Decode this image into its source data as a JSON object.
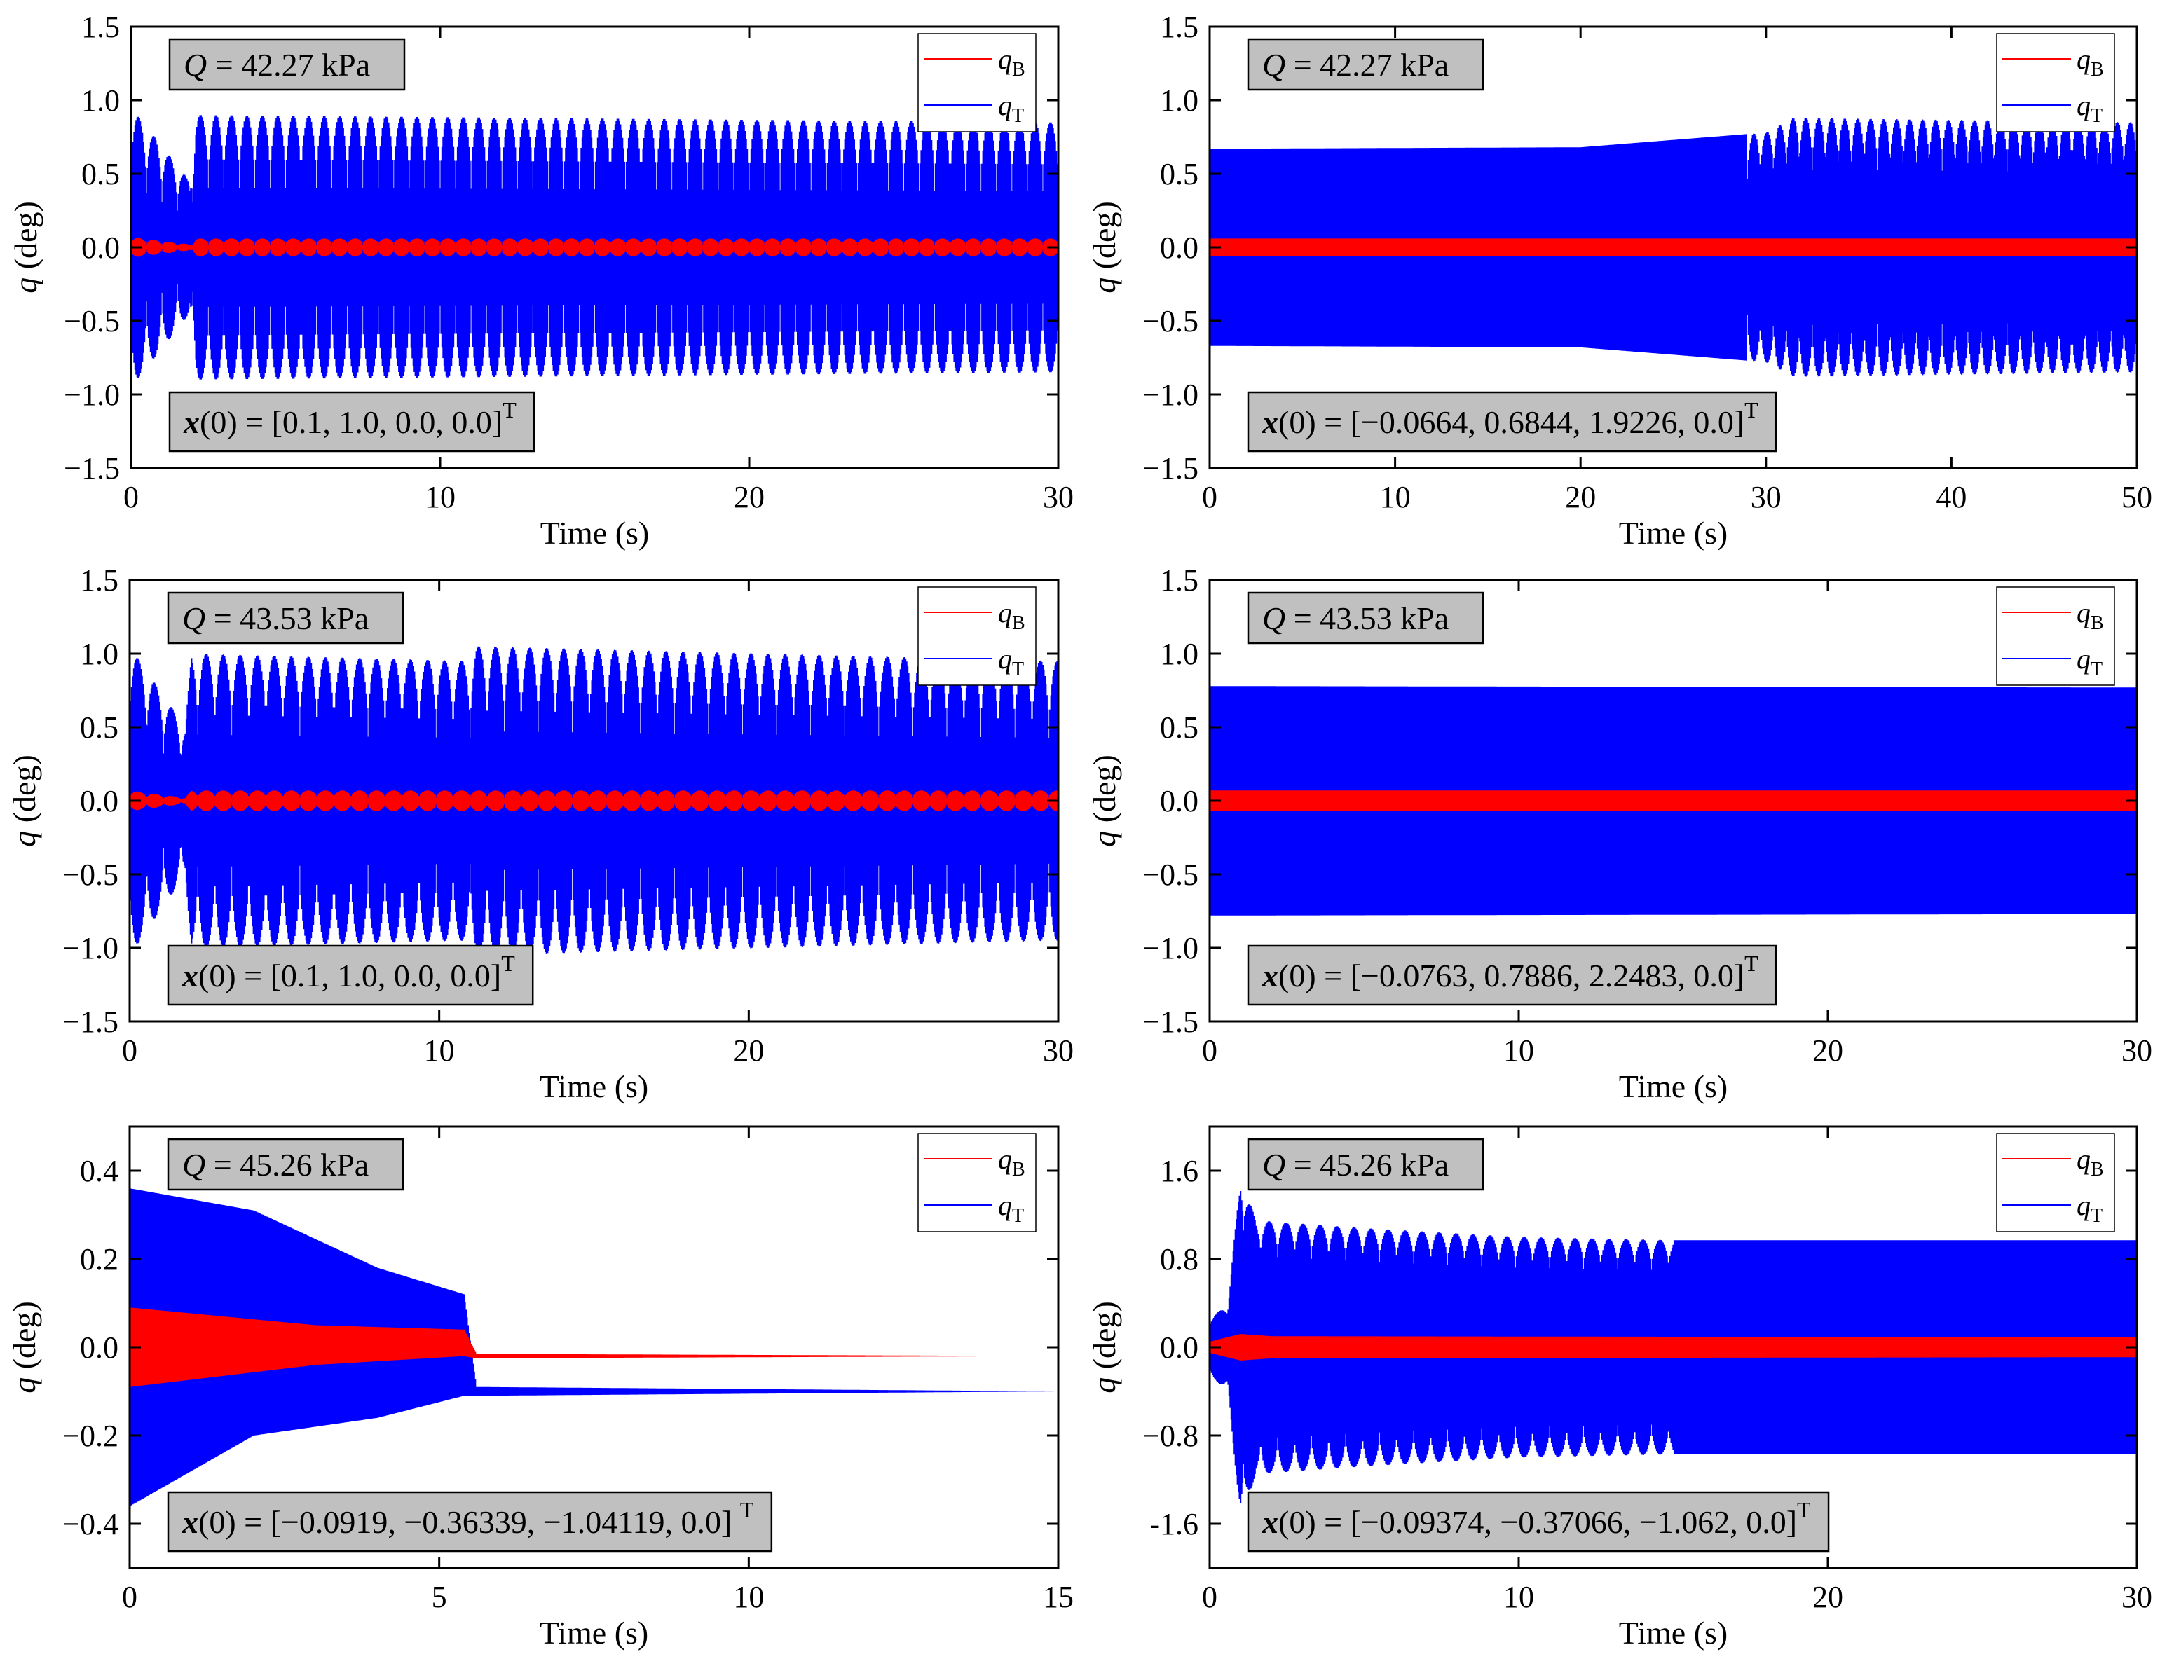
{
  "chart_data": [
    {
      "type": "line",
      "panel": "top-left",
      "title": "",
      "xlabel": "Time (s)",
      "ylabel": "q (deg)",
      "xlim": [
        0,
        30
      ],
      "ylim": [
        -1.5,
        1.5
      ],
      "xticks": [
        0,
        10,
        20,
        30
      ],
      "xtick_labels": [
        "0",
        "10",
        "20",
        "30"
      ],
      "yticks": [
        -1.5,
        -1.0,
        -0.5,
        0.0,
        0.5,
        1.0,
        1.5
      ],
      "ytick_labels": [
        "−1.5",
        "−1.0",
        "−0.5",
        "0.0",
        "0.5",
        "1.0",
        "1.5"
      ],
      "annotation_q": {
        "sym": "Q",
        "rest": " = 42.27 kPa"
      },
      "annotation_x0": {
        "sym": "x",
        "rest": "(0) = [0.1, 1.0, 0.0, 0.0]",
        "sup": "T"
      },
      "legend": [
        {
          "sym": "q",
          "sub": "B",
          "color": "#ff0000"
        },
        {
          "sym": "q",
          "sub": "T",
          "color": "#0000ff"
        }
      ],
      "legend_position": "top-right",
      "series": [
        {
          "name": "q_T",
          "color": "#0000ff",
          "description": "bursting oscillation",
          "envelope": [
            [
              0,
              0.95
            ],
            [
              1.9,
              0.45
            ],
            [
              2.1,
              0.9
            ],
            [
              30,
              0.85
            ]
          ],
          "beats": true,
          "beat_period": 0.5,
          "beat_min": 0.45
        },
        {
          "name": "q_B",
          "color": "#ff0000",
          "envelope": [
            [
              0,
              0.07
            ],
            [
              1.9,
              0.02
            ],
            [
              2.1,
              0.06
            ],
            [
              30,
              0.06
            ]
          ],
          "beats": true,
          "beat_period": 0.5,
          "beat_min": 0.3
        }
      ]
    },
    {
      "type": "line",
      "panel": "top-right",
      "title": "",
      "xlabel": "Time (s)",
      "ylabel": "q (deg)",
      "xlim": [
        0,
        50
      ],
      "ylim": [
        -1.5,
        1.5
      ],
      "xticks": [
        0,
        10,
        20,
        30,
        40,
        50
      ],
      "xtick_labels": [
        "0",
        "10",
        "20",
        "30",
        "40",
        "50"
      ],
      "yticks": [
        -1.5,
        -1.0,
        -0.5,
        0.0,
        0.5,
        1.0,
        1.5
      ],
      "ytick_labels": [
        "−1.5",
        "−1.0",
        "−0.5",
        "0.0",
        "0.5",
        "1.0",
        "1.5"
      ],
      "annotation_q": {
        "sym": "Q",
        "rest": " = 42.27 kPa"
      },
      "annotation_x0": {
        "sym": "x",
        "rest": "(0) = [−0.0664, 0.6844, 1.9226, 0.0]",
        "sup": "T"
      },
      "legend": [
        {
          "sym": "q",
          "sub": "B",
          "color": "#ff0000"
        },
        {
          "sym": "q",
          "sub": "T",
          "color": "#0000ff"
        }
      ],
      "legend_position": "top-right",
      "series": [
        {
          "name": "q_T",
          "color": "#0000ff",
          "envelope": [
            [
              0,
              0.67
            ],
            [
              20,
              0.68
            ],
            [
              30,
              0.78
            ],
            [
              31.5,
              0.88
            ],
            [
              50,
              0.85
            ]
          ],
          "beats": true,
          "beat_period": 0.7,
          "beat_min": 0.6,
          "beat_start": 29
        },
        {
          "name": "q_B",
          "color": "#ff0000",
          "envelope": [
            [
              0,
              0.06
            ],
            [
              50,
              0.06
            ]
          ],
          "beats": false
        }
      ]
    },
    {
      "type": "line",
      "panel": "middle-left",
      "title": "",
      "xlabel": "Time (s)",
      "ylabel": "q (deg)",
      "xlim": [
        0,
        30
      ],
      "ylim": [
        -1.5,
        1.5
      ],
      "xticks": [
        0,
        10,
        20,
        30
      ],
      "xtick_labels": [
        "0",
        "10",
        "20",
        "30"
      ],
      "yticks": [
        -1.5,
        -1.0,
        -0.5,
        0.0,
        0.5,
        1.0,
        1.5
      ],
      "ytick_labels": [
        "−1.5",
        "−1.0",
        "−0.5",
        "0.0",
        "0.5",
        "1.0",
        "1.5"
      ],
      "annotation_q": {
        "sym": "Q",
        "rest": " = 43.53 kPa"
      },
      "annotation_x0": {
        "sym": "x",
        "rest": "(0) = [0.1, 1.0, 0.0, 0.0]",
        "sup": "T"
      },
      "legend": [
        {
          "sym": "q",
          "sub": "B",
          "color": "#ff0000"
        },
        {
          "sym": "q",
          "sub": "T",
          "color": "#0000ff"
        }
      ],
      "legend_position": "top-right",
      "series": [
        {
          "name": "q_T",
          "color": "#0000ff",
          "envelope": [
            [
              0,
              1.05
            ],
            [
              1.8,
              0.5
            ],
            [
              2.0,
              1.0
            ],
            [
              11.0,
              0.95
            ],
            [
              11.2,
              1.05
            ],
            [
              30,
              0.95
            ]
          ],
          "beats": true,
          "beat_period": 0.55,
          "beat_min": 0.45
        },
        {
          "name": "q_B",
          "color": "#ff0000",
          "envelope": [
            [
              0,
              0.07
            ],
            [
              1.8,
              0.02
            ],
            [
              2.0,
              0.07
            ],
            [
              30,
              0.07
            ]
          ],
          "beats": true,
          "beat_period": 0.55,
          "beat_min": 0.3
        }
      ]
    },
    {
      "type": "line",
      "panel": "middle-right",
      "title": "",
      "xlabel": "Time (s)",
      "ylabel": "q (deg)",
      "xlim": [
        0,
        30
      ],
      "ylim": [
        -1.5,
        1.5
      ],
      "xticks": [
        0,
        10,
        20,
        30
      ],
      "xtick_labels": [
        "0",
        "10",
        "20",
        "30"
      ],
      "yticks": [
        -1.5,
        -1.0,
        -0.5,
        0.0,
        0.5,
        1.0,
        1.5
      ],
      "ytick_labels": [
        "−1.5",
        "−1.0",
        "−0.5",
        "0.0",
        "0.5",
        "1.0",
        "1.5"
      ],
      "annotation_q": {
        "sym": "Q",
        "rest": " = 43.53 kPa"
      },
      "annotation_x0": {
        "sym": "x",
        "rest": "(0) = [−0.0763, 0.7886, 2.2483, 0.0]",
        "sup": "T"
      },
      "legend": [
        {
          "sym": "q",
          "sub": "B",
          "color": "#ff0000"
        },
        {
          "sym": "q",
          "sub": "T",
          "color": "#0000ff"
        }
      ],
      "legend_position": "top-right",
      "series": [
        {
          "name": "q_T",
          "color": "#0000ff",
          "envelope": [
            [
              0,
              0.78
            ],
            [
              30,
              0.77
            ]
          ],
          "beats": false
        },
        {
          "name": "q_B",
          "color": "#ff0000",
          "envelope": [
            [
              0,
              0.07
            ],
            [
              30,
              0.07
            ]
          ],
          "beats": false
        }
      ]
    },
    {
      "type": "line",
      "panel": "bottom-left",
      "title": "",
      "xlabel": "Time (s)",
      "ylabel": "q (deg)",
      "xlim": [
        0,
        15
      ],
      "ylim": [
        -0.5,
        0.5
      ],
      "xticks": [
        0,
        5,
        10,
        15
      ],
      "xtick_labels": [
        "0",
        "5",
        "10",
        "15"
      ],
      "yticks": [
        -0.4,
        -0.2,
        0.0,
        0.2,
        0.4
      ],
      "ytick_labels": [
        "−0.4",
        "−0.2",
        "0.0",
        "0.2",
        "0.4"
      ],
      "annotation_q": {
        "sym": "Q",
        "rest": " = 45.26 kPa"
      },
      "annotation_x0": {
        "sym": "x",
        "rest": "(0) = [−0.0919, −0.36339, −1.04119, 0.0] ",
        "sup": "T"
      },
      "legend": [
        {
          "sym": "q",
          "sub": "B",
          "color": "#ff0000"
        },
        {
          "sym": "q",
          "sub": "T",
          "color": "#0000ff"
        }
      ],
      "legend_position": "top-right",
      "series": [
        {
          "name": "q_T",
          "color": "#0000ff",
          "description": "decaying oscillation settling to static value",
          "upper": [
            [
              0,
              0.36
            ],
            [
              2,
              0.31
            ],
            [
              4,
              0.18
            ],
            [
              5.4,
              0.12
            ],
            [
              5.6,
              -0.09
            ],
            [
              15,
              -0.1
            ]
          ],
          "lower": [
            [
              0,
              -0.36
            ],
            [
              2,
              -0.2
            ],
            [
              4,
              -0.16
            ],
            [
              5.4,
              -0.11
            ],
            [
              5.6,
              -0.11
            ],
            [
              15,
              -0.1
            ]
          ],
          "beats": false
        },
        {
          "name": "q_B",
          "color": "#ff0000",
          "upper": [
            [
              0,
              0.09
            ],
            [
              3,
              0.05
            ],
            [
              5.4,
              0.04
            ],
            [
              5.6,
              -0.015
            ],
            [
              15,
              -0.02
            ]
          ],
          "lower": [
            [
              0,
              -0.09
            ],
            [
              3,
              -0.04
            ],
            [
              5.4,
              -0.02
            ],
            [
              5.6,
              -0.025
            ],
            [
              15,
              -0.02
            ]
          ],
          "beats": false
        }
      ]
    },
    {
      "type": "line",
      "panel": "bottom-right",
      "title": "",
      "xlabel": "Time (s)",
      "ylabel": "q (deg)",
      "xlim": [
        0,
        30
      ],
      "ylim": [
        -2.0,
        2.0
      ],
      "xticks": [
        0,
        10,
        20,
        30
      ],
      "xtick_labels": [
        "0",
        "10",
        "20",
        "30"
      ],
      "yticks": [
        -1.6,
        -0.8,
        0.0,
        0.8,
        1.6
      ],
      "ytick_labels": [
        "-1.6",
        "−0.8",
        "0.0",
        "0.8",
        "1.6"
      ],
      "annotation_q": {
        "sym": "Q",
        "rest": " = 45.26 kPa"
      },
      "annotation_x0": {
        "sym": "x",
        "rest": "(0) = [−0.09374, −0.37066, −1.062, 0.0]",
        "sup": "T"
      },
      "legend": [
        {
          "sym": "q",
          "sub": "B",
          "color": "#ff0000"
        },
        {
          "sym": "q",
          "sub": "T",
          "color": "#0000ff"
        }
      ],
      "legend_position": "top-right",
      "series": [
        {
          "name": "q_T",
          "color": "#0000ff",
          "description": "overshoot then bursting decaying to limit cycle",
          "envelope": [
            [
              0,
              0.25
            ],
            [
              0.6,
              0.4
            ],
            [
              1.0,
              1.55
            ],
            [
              1.5,
              1.15
            ],
            [
              5,
              1.08
            ],
            [
              10,
              1.0
            ],
            [
              15,
              0.97
            ],
            [
              30,
              0.97
            ]
          ],
          "beats": true,
          "beat_period": 0.55,
          "beat_min": 0.72,
          "beat_end": 15
        },
        {
          "name": "q_B",
          "color": "#ff0000",
          "envelope": [
            [
              0,
              0.05
            ],
            [
              1.0,
              0.12
            ],
            [
              2,
              0.1
            ],
            [
              30,
              0.09
            ]
          ],
          "beats": false
        }
      ]
    }
  ]
}
